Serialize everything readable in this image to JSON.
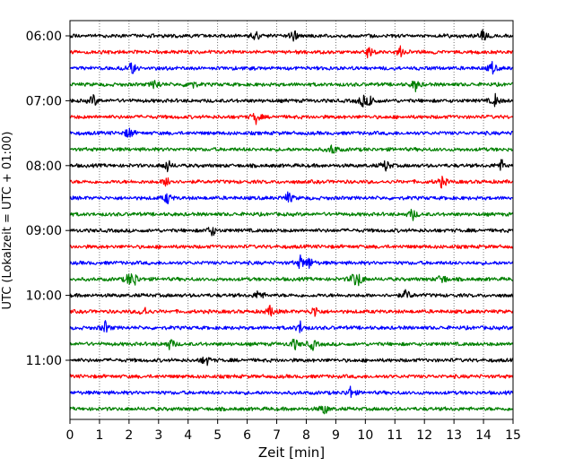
{
  "chart_data": {
    "type": "line",
    "title": "",
    "xlabel": "Zeit  [min]",
    "ylabel": "UTC (Lokalzeit = UTC + 01:00)",
    "xlim": [
      0,
      15
    ],
    "x_ticks": [
      0,
      1,
      2,
      3,
      4,
      5,
      6,
      7,
      8,
      9,
      10,
      11,
      12,
      13,
      14,
      15
    ],
    "x_tick_labels": [
      "0",
      "1",
      "2",
      "3",
      "4",
      "5",
      "6",
      "7",
      "8",
      "9",
      "10",
      "11",
      "12",
      "13",
      "14",
      "15"
    ],
    "y_tick_labels": [
      "06:00",
      "07:00",
      "08:00",
      "09:00",
      "10:00",
      "11:00"
    ],
    "vertical_grid": true,
    "grid_style": "dotted",
    "trace_interval_min": 15,
    "color_cycle": [
      "#000000",
      "#ff0000",
      "#0000ff",
      "#008000"
    ],
    "traces": [
      {
        "start": "06:00",
        "events_min": [
          6.3,
          7.6,
          14.0
        ]
      },
      {
        "start": "06:15",
        "events_min": [
          10.1,
          11.2
        ]
      },
      {
        "start": "06:30",
        "events_min": [
          2.1,
          14.3
        ]
      },
      {
        "start": "06:45",
        "events_min": [
          2.9,
          4.1,
          11.7
        ]
      },
      {
        "start": "07:00",
        "events_min": [
          0.8,
          9.9,
          10.2,
          14.4
        ]
      },
      {
        "start": "07:15",
        "events_min": [
          6.3
        ]
      },
      {
        "start": "07:30",
        "events_min": [
          2.0
        ]
      },
      {
        "start": "07:45",
        "events_min": [
          8.9
        ]
      },
      {
        "start": "08:00",
        "events_min": [
          3.3,
          10.7,
          14.6
        ]
      },
      {
        "start": "08:15",
        "events_min": [
          3.3,
          12.6
        ]
      },
      {
        "start": "08:30",
        "events_min": [
          3.3,
          7.4
        ]
      },
      {
        "start": "08:45",
        "events_min": [
          11.6
        ]
      },
      {
        "start": "09:00",
        "events_min": [
          4.8
        ]
      },
      {
        "start": "09:15",
        "events_min": []
      },
      {
        "start": "09:30",
        "events_min": [
          7.8,
          8.1
        ]
      },
      {
        "start": "09:45",
        "events_min": [
          2.0,
          2.2,
          9.6,
          9.8,
          12.6
        ]
      },
      {
        "start": "10:00",
        "events_min": [
          6.4,
          11.4
        ]
      },
      {
        "start": "10:15",
        "events_min": [
          2.5,
          6.8,
          8.3
        ]
      },
      {
        "start": "10:30",
        "events_min": [
          1.2,
          7.8
        ]
      },
      {
        "start": "10:45",
        "events_min": [
          3.4,
          7.6,
          8.2
        ]
      },
      {
        "start": "11:00",
        "events_min": [
          4.6
        ]
      },
      {
        "start": "11:15",
        "events_min": []
      },
      {
        "start": "11:30",
        "events_min": [
          9.5
        ]
      },
      {
        "start": "11:45",
        "events_min": [
          8.6
        ]
      }
    ]
  }
}
